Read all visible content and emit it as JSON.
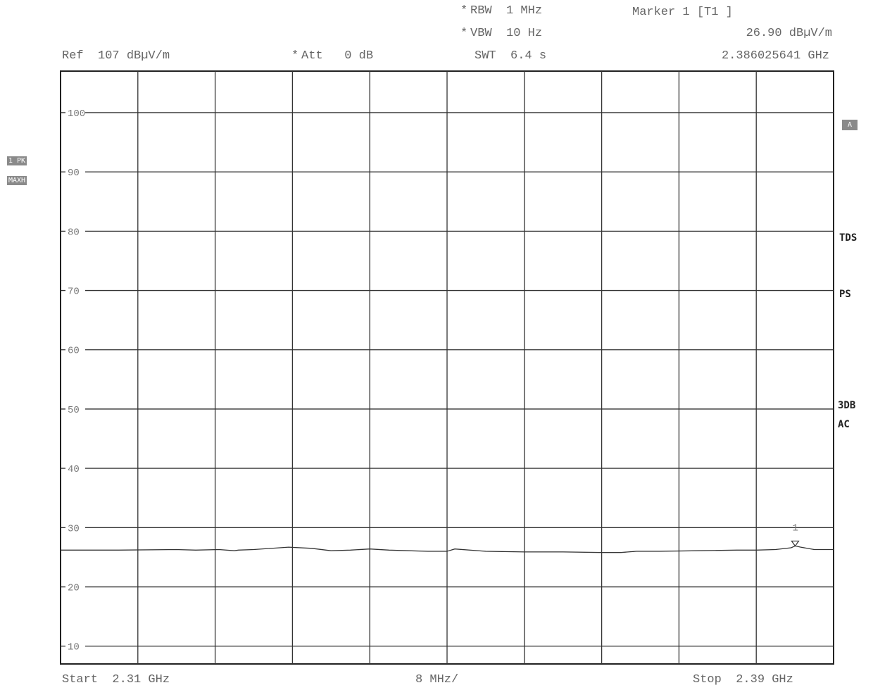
{
  "header": {
    "ref": "Ref  107 dBµV/m",
    "att_star": "*",
    "att": "Att   0 dB",
    "rbw_star": "*",
    "rbw": "RBW  1 MHz",
    "vbw_star": "*",
    "vbw": "VBW  10 Hz",
    "swt": "SWT  6.4 s",
    "marker_title": "Marker 1 [T1 ]",
    "marker_level": "26.90 dBµV/m",
    "marker_freq": "2.386025641 GHz"
  },
  "left_badges": {
    "trace": "1 PK",
    "mode": "MAXH"
  },
  "right_side": {
    "badge_a": "A",
    "tds": "TDS",
    "ps": "PS",
    "db3": "3DB",
    "ac": "AC"
  },
  "footer": {
    "start": "Start  2.31 GHz",
    "span": "8 MHz/",
    "stop": "Stop  2.39 GHz"
  },
  "chart_data": {
    "type": "line",
    "xlim": [
      2.31,
      2.39
    ],
    "ylim": [
      7,
      107
    ],
    "y_ticks": [
      10,
      20,
      30,
      40,
      50,
      60,
      70,
      80,
      90,
      100
    ],
    "grid": true,
    "x_divisions": 10,
    "series": [
      {
        "x": [
          2.31,
          2.316,
          2.322,
          2.324,
          2.3264,
          2.328,
          2.3284,
          2.33,
          2.3336,
          2.336,
          2.338,
          2.34,
          2.342,
          2.344,
          2.346,
          2.348,
          2.35,
          2.3508,
          2.354,
          2.358,
          2.362,
          2.366,
          2.368,
          2.3696,
          2.372,
          2.376,
          2.38,
          2.382,
          2.384,
          2.3856,
          2.386025641,
          2.3866,
          2.388,
          2.39
        ],
        "y": [
          26.2,
          26.2,
          26.3,
          26.2,
          26.3,
          26.1,
          26.2,
          26.3,
          26.7,
          26.5,
          26.1,
          26.2,
          26.4,
          26.2,
          26.1,
          26.0,
          26.0,
          26.4,
          26.0,
          25.9,
          25.9,
          25.8,
          25.8,
          26.0,
          26.0,
          26.1,
          26.2,
          26.2,
          26.3,
          26.6,
          26.9,
          26.7,
          26.3,
          26.3
        ]
      }
    ],
    "marker": {
      "label": "1",
      "x": 2.386025641,
      "y": 26.9
    }
  }
}
